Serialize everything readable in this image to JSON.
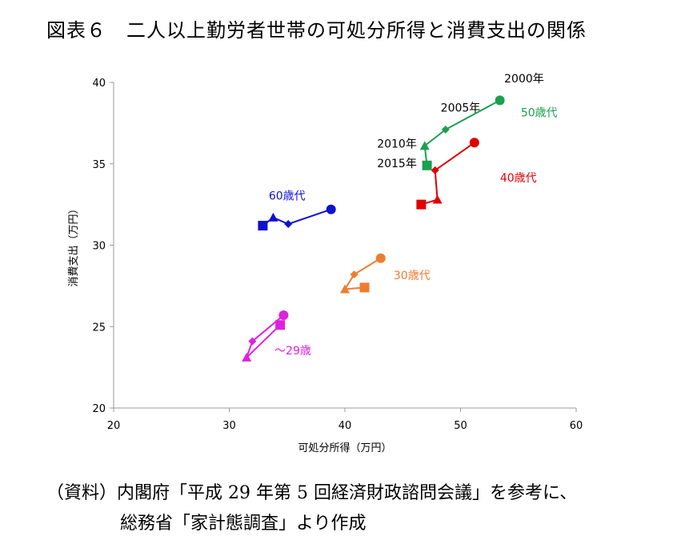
{
  "figure": {
    "title": "図表６　二人以上勤労者世帯の可処分所得と消費支出の関係",
    "source_line1": "（資料）内閣府「平成 29 年第 5 回経済財政諮問会議」を参考に、",
    "source_line2": "総務省「家計態調査」より作成"
  },
  "chart_data": {
    "type": "scatter",
    "xlabel": "可処分所得（万円）",
    "ylabel": "消費支出（万円）",
    "xlim": [
      20,
      60
    ],
    "ylim": [
      20,
      40
    ],
    "xticks": [
      20,
      30,
      40,
      50,
      60
    ],
    "yticks": [
      20,
      25,
      30,
      35,
      40
    ],
    "grid": false,
    "marker_legend": {
      "2000": "circle",
      "2005": "diamond",
      "2010": "triangle",
      "2015": "square"
    },
    "series": [
      {
        "name": "〜29歳",
        "color": "#e020e0",
        "points": [
          {
            "x": 34.7,
            "y": 25.7
          },
          {
            "x": 32.0,
            "y": 24.1
          },
          {
            "x": 31.5,
            "y": 23.1
          },
          {
            "x": 34.4,
            "y": 25.1
          }
        ]
      },
      {
        "name": "30歳代",
        "color": "#ed7d31",
        "points": [
          {
            "x": 43.1,
            "y": 29.2
          },
          {
            "x": 40.8,
            "y": 28.2
          },
          {
            "x": 40.0,
            "y": 27.3
          },
          {
            "x": 41.7,
            "y": 27.4
          }
        ]
      },
      {
        "name": "40歳代",
        "color": "#e00000",
        "points": [
          {
            "x": 51.2,
            "y": 36.3
          },
          {
            "x": 47.8,
            "y": 34.6
          },
          {
            "x": 48.0,
            "y": 32.8
          },
          {
            "x": 46.6,
            "y": 32.5
          }
        ]
      },
      {
        "name": "50歳代",
        "color": "#1aa050",
        "points": [
          {
            "x": 53.4,
            "y": 38.9
          },
          {
            "x": 48.7,
            "y": 37.1
          },
          {
            "x": 46.9,
            "y": 36.1
          },
          {
            "x": 47.1,
            "y": 34.9
          }
        ]
      },
      {
        "name": "60歳代",
        "color": "#1010d0",
        "points": [
          {
            "x": 38.8,
            "y": 32.2
          },
          {
            "x": 35.1,
            "y": 31.3
          },
          {
            "x": 33.8,
            "y": 31.7
          },
          {
            "x": 32.9,
            "y": 31.2
          }
        ]
      }
    ],
    "annotations": [
      {
        "text": "2000年",
        "x": 55.5,
        "y": 40.0,
        "color": "#000000"
      },
      {
        "text": "2005年",
        "x": 50.0,
        "y": 38.2,
        "color": "#000000"
      },
      {
        "text": "2010年",
        "x": 44.5,
        "y": 36.0,
        "color": "#000000"
      },
      {
        "text": "2015年",
        "x": 44.5,
        "y": 34.8,
        "color": "#000000"
      },
      {
        "text": "50歳代",
        "x": 56.8,
        "y": 37.9,
        "color": "#1aa050"
      },
      {
        "text": "40歳代",
        "x": 55.0,
        "y": 33.9,
        "color": "#e00000"
      },
      {
        "text": "60歳代",
        "x": 35.0,
        "y": 32.8,
        "color": "#1010d0"
      },
      {
        "text": "30歳代",
        "x": 45.8,
        "y": 27.9,
        "color": "#ed7d31"
      },
      {
        "text": "〜29歳",
        "x": 35.5,
        "y": 23.3,
        "color": "#e020e0"
      }
    ]
  }
}
